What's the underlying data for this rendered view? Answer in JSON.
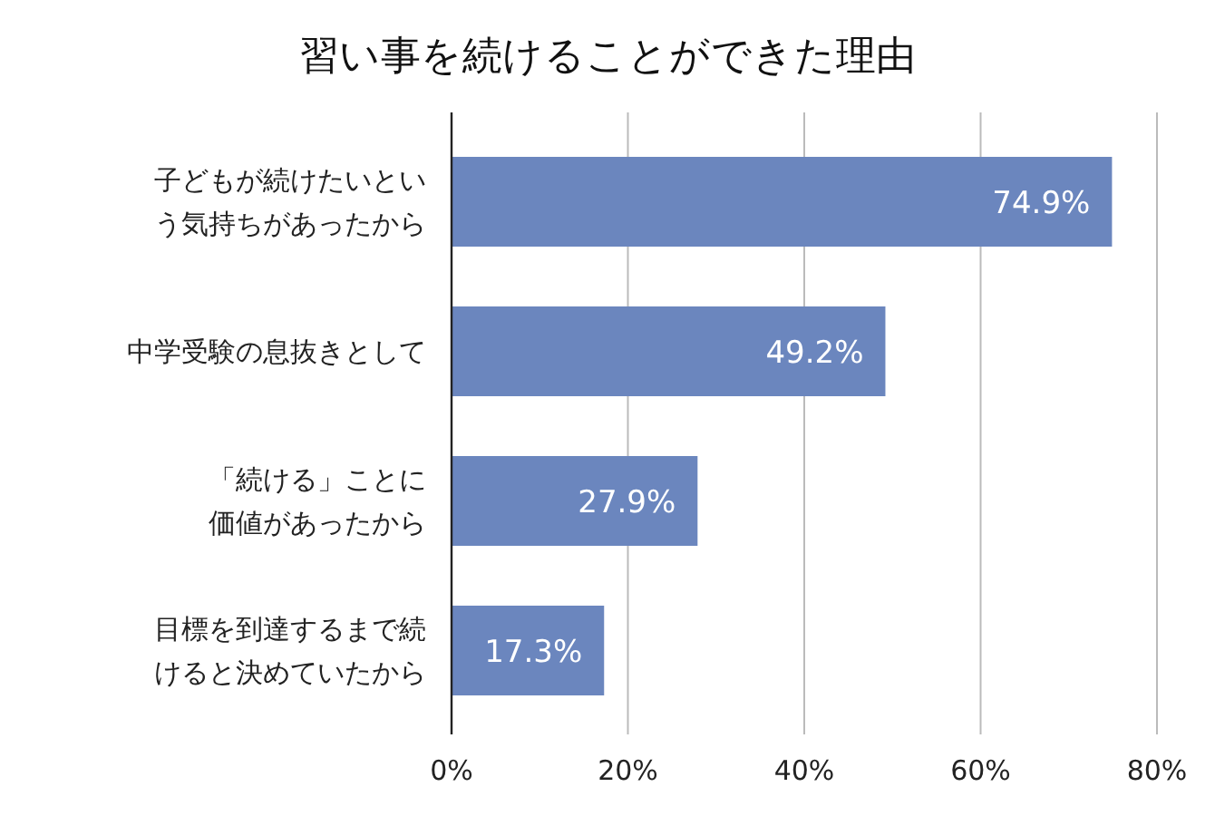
{
  "chart_data": {
    "type": "bar",
    "orientation": "horizontal",
    "title": "習い事を続けることができた理由",
    "categories": [
      "子どもが続けたいという気持ちがあったから",
      "中学受験の息抜きとして",
      "「続ける」ことに価値があったから",
      "目標を到達するまで続けると決めていたから"
    ],
    "values": [
      74.9,
      49.2,
      27.9,
      17.3
    ],
    "value_labels": [
      "74.9%",
      "49.2%",
      "27.9%",
      "17.3%"
    ],
    "color": "#6b86be",
    "xlim": [
      0,
      80
    ],
    "xticks": [
      {
        "value": 0,
        "label": "0%"
      },
      {
        "value": 20,
        "label": "20%"
      },
      {
        "value": 40,
        "label": "40%"
      },
      {
        "value": 60,
        "label": "60%"
      },
      {
        "value": 80,
        "label": "80%"
      }
    ],
    "grid": "x"
  }
}
